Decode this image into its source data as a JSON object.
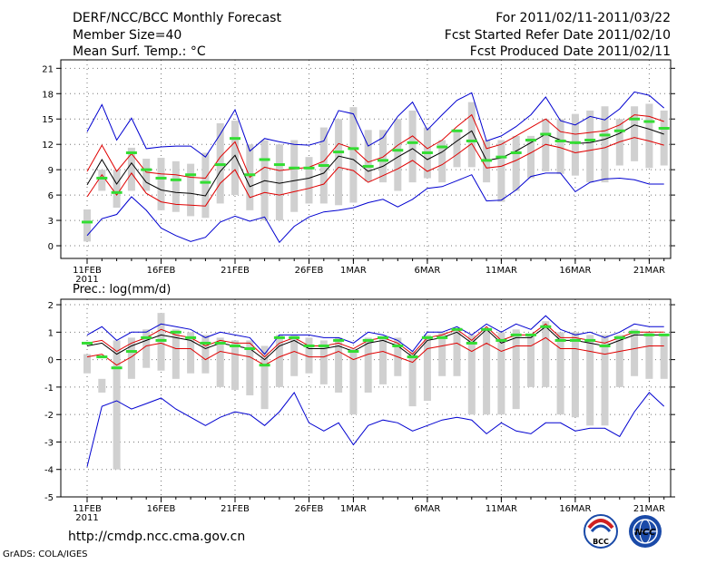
{
  "header": {
    "title": "DERF/NCC/BCC Monthly Forecast",
    "member_size": "Member Size=40",
    "variable": "Mean Surf. Temp.: °C",
    "period": "For 2011/02/11-2011/03/22",
    "started": "Fcst Started Refer Date 2011/02/10",
    "produced": "Fcst Produced Date 2011/02/11"
  },
  "footer": {
    "url": "http://cmdp.ncc.cma.gov.cn",
    "grads": "GrADS: COLA/IGES",
    "logo_bcc": "BCC",
    "logo_ncc": "NCC"
  },
  "colors": {
    "mean": "#000000",
    "spread": "#e00000",
    "extreme": "#0000d0",
    "box": "#d0d0d0",
    "dash": "#33dd33"
  },
  "chart_data": [
    {
      "type": "box-ensemble",
      "title": "Mean Surf. Temp.: °C",
      "ylim": [
        -1.5,
        22
      ],
      "yticks": [
        0,
        3,
        6,
        9,
        12,
        15,
        18,
        21
      ],
      "xticks": [
        {
          "day": 0,
          "label": "11FEB",
          "sub": "2011"
        },
        {
          "day": 5,
          "label": "16FEB"
        },
        {
          "day": 10,
          "label": "21FEB"
        },
        {
          "day": 15,
          "label": "26FEB"
        },
        {
          "day": 18,
          "label": "1MAR"
        },
        {
          "day": 23,
          "label": "6MAR"
        },
        {
          "day": 28,
          "label": "11MAR"
        },
        {
          "day": 33,
          "label": "16MAR"
        },
        {
          "day": 38,
          "label": "21MAR"
        }
      ],
      "series": [
        {
          "name": "max",
          "color": "extreme",
          "values": [
            13.5,
            16.7,
            12.5,
            15.1,
            11.5,
            11.7,
            11.8,
            11.8,
            10.5,
            13.2,
            16.1,
            11.2,
            12.7,
            12.3,
            12,
            11.9,
            12.4,
            16,
            15.6,
            11.8,
            12.8,
            15.3,
            17,
            13.7,
            15.5,
            17.2,
            18.1,
            12.4,
            13,
            14.1,
            15.5,
            17.6,
            14.8,
            14.3,
            15.3,
            14.9,
            16.2,
            18.2,
            17.8,
            16.3
          ]
        },
        {
          "name": "upper",
          "color": "spread",
          "values": [
            8.8,
            11.9,
            8.8,
            10.9,
            8.7,
            8.5,
            8.4,
            8.1,
            8,
            10.5,
            12.3,
            8.1,
            9.3,
            8.9,
            9.1,
            9.3,
            10,
            12.1,
            11.5,
            9.9,
            10.5,
            11.9,
            13,
            11.5,
            12.5,
            14.1,
            15.5,
            11.5,
            12,
            13,
            14,
            15,
            13.5,
            13.2,
            13.4,
            13.6,
            14.3,
            15.5,
            15.3,
            14.7
          ]
        },
        {
          "name": "mean",
          "color": "mean",
          "values": [
            7.2,
            10.2,
            7.3,
            9.8,
            7.5,
            6.6,
            6.3,
            6.2,
            5.9,
            8.8,
            10.7,
            7,
            7.7,
            7.4,
            7.7,
            8,
            8.6,
            10.6,
            10.2,
            8.8,
            9.4,
            10.5,
            11.5,
            10.2,
            11.1,
            12.4,
            13.6,
            10.1,
            10.4,
            11.2,
            12.2,
            13.2,
            12.5,
            12.1,
            12.2,
            12.6,
            13.3,
            14.3,
            13.8,
            13.2
          ]
        },
        {
          "name": "lower",
          "color": "spread",
          "values": [
            5.8,
            8.4,
            6,
            8.6,
            6.2,
            5.2,
            4.9,
            4.8,
            4.7,
            7.4,
            9,
            5.7,
            6.3,
            6,
            6.4,
            6.8,
            7.3,
            9.3,
            8.9,
            7.5,
            8.3,
            9.1,
            10.1,
            8.8,
            9.6,
            10.8,
            12.1,
            9.2,
            9.4,
            10.1,
            11,
            12,
            11.6,
            11,
            11.3,
            11.6,
            12.3,
            12.8,
            12.4,
            11.9
          ]
        },
        {
          "name": "min",
          "color": "extreme",
          "values": [
            1.2,
            3.2,
            3.7,
            5.8,
            4.2,
            2.1,
            1.2,
            0.5,
            1,
            2.8,
            3.5,
            2.9,
            3.4,
            0.4,
            2.3,
            3.4,
            4,
            4.2,
            4.5,
            5.1,
            5.5,
            4.6,
            5.5,
            6.8,
            7,
            7.7,
            8.4,
            5.3,
            5.4,
            6.6,
            8.2,
            8.6,
            8.6,
            6.4,
            7.5,
            7.9,
            8,
            7.8,
            7.3,
            7.3
          ]
        },
        {
          "name": "observed",
          "color": "dash",
          "values": [
            2.8,
            8,
            6.3,
            11,
            9,
            8,
            7.8,
            8.4,
            7.5,
            9.6,
            12.7,
            8.4,
            10.2,
            9.6,
            9.2,
            9.2,
            9.5,
            11.1,
            11.5,
            9.4,
            10.1,
            11.3,
            12.2,
            11,
            11.7,
            13.6,
            12.4,
            10.1,
            10.5,
            11,
            12.5,
            13.2,
            12.4,
            12.2,
            12.5,
            13.1,
            13.6,
            15,
            14.7,
            13.9
          ]
        },
        {
          "name": "box_top",
          "color": "box",
          "values": [
            4.3,
            9,
            9,
            11.6,
            10.3,
            10.4,
            10,
            9.7,
            11,
            14.5,
            14.8,
            12,
            12.5,
            12,
            12.5,
            10.5,
            14,
            15,
            16.4,
            13.7,
            13.7,
            15,
            16,
            14,
            12.5,
            13.5,
            17,
            12.5,
            12.5,
            13,
            13,
            15,
            15,
            15.6,
            16,
            16.5,
            15,
            16.5,
            16.8,
            16
          ]
        },
        {
          "name": "box_bottom",
          "color": "box",
          "values": [
            0.5,
            6.5,
            4.5,
            6.5,
            6.5,
            4.2,
            4,
            3.5,
            3.3,
            5,
            6,
            4.2,
            3,
            3,
            4,
            5,
            5,
            4.8,
            5.1,
            7.6,
            7.5,
            6.5,
            7.5,
            8,
            7.5,
            9.3,
            9.3,
            7.5,
            5.2,
            6.5,
            8,
            8.8,
            8.5,
            8.3,
            7.5,
            7.5,
            9.5,
            10,
            9.2,
            9.5
          ]
        }
      ]
    },
    {
      "type": "box-ensemble",
      "title": "Prec.: log(mm/d)",
      "ylim": [
        -5,
        2.2
      ],
      "yticks": [
        -5,
        -4,
        -3,
        -2,
        -1,
        0,
        1,
        2
      ],
      "xticks": [
        {
          "day": 0,
          "label": "11FEB",
          "sub": "2011"
        },
        {
          "day": 5,
          "label": "16FEB"
        },
        {
          "day": 10,
          "label": "21FEB"
        },
        {
          "day": 15,
          "label": "26FEB"
        },
        {
          "day": 18,
          "label": "1MAR"
        },
        {
          "day": 23,
          "label": "6MAR"
        },
        {
          "day": 28,
          "label": "11MAR"
        },
        {
          "day": 33,
          "label": "16MAR"
        },
        {
          "day": 38,
          "label": "21MAR"
        }
      ],
      "series": [
        {
          "name": "max",
          "color": "extreme",
          "values": [
            0.9,
            1.2,
            0.7,
            1,
            1,
            1.3,
            1.2,
            1.1,
            0.8,
            1,
            0.9,
            0.8,
            0.2,
            0.9,
            0.9,
            0.9,
            0.8,
            0.8,
            0.6,
            1,
            0.9,
            0.7,
            0.3,
            1,
            1,
            1.2,
            0.9,
            1.3,
            1,
            1.3,
            1.1,
            1.6,
            1.1,
            0.9,
            1,
            0.8,
            1,
            1.3,
            1.2,
            1.2
          ]
        },
        {
          "name": "upper",
          "color": "spread",
          "values": [
            0.6,
            0.7,
            0.3,
            0.6,
            0.8,
            1.1,
            0.9,
            0.8,
            0.5,
            0.7,
            0.6,
            0.6,
            0.1,
            0.6,
            0.8,
            0.5,
            0.5,
            0.6,
            0.4,
            0.7,
            0.8,
            0.6,
            0.2,
            0.8,
            0.9,
            1.1,
            0.7,
            1.2,
            0.7,
            0.9,
            0.9,
            1.3,
            0.8,
            0.8,
            0.7,
            0.6,
            0.8,
            1,
            1,
            1
          ]
        },
        {
          "name": "mean",
          "color": "mean",
          "values": [
            0.5,
            0.6,
            0.2,
            0.5,
            0.7,
            0.9,
            0.8,
            0.7,
            0.4,
            0.6,
            0.5,
            0.4,
            0,
            0.5,
            0.7,
            0.4,
            0.4,
            0.5,
            0.3,
            0.6,
            0.7,
            0.5,
            0.1,
            0.7,
            0.8,
            1,
            0.6,
            1.1,
            0.6,
            0.8,
            0.8,
            1.2,
            0.7,
            0.7,
            0.6,
            0.5,
            0.7,
            0.9,
            0.9,
            0.9
          ]
        },
        {
          "name": "lower",
          "color": "spread",
          "values": [
            0.1,
            0.2,
            -0.2,
            0.1,
            0.5,
            0.6,
            0.4,
            0.4,
            0,
            0.3,
            0.2,
            0.1,
            -0.2,
            0.1,
            0.3,
            0.1,
            0.1,
            0.3,
            0,
            0.2,
            0.3,
            0.1,
            -0.1,
            0.4,
            0.5,
            0.6,
            0.3,
            0.6,
            0.3,
            0.5,
            0.5,
            0.8,
            0.4,
            0.4,
            0.3,
            0.2,
            0.3,
            0.4,
            0.5,
            0.5
          ]
        },
        {
          "name": "min",
          "color": "extreme",
          "values": [
            -3.9,
            -1.7,
            -1.5,
            -1.8,
            -1.6,
            -1.4,
            -1.8,
            -2.1,
            -2.4,
            -2.1,
            -1.9,
            -2,
            -2.4,
            -1.9,
            -1.2,
            -2.3,
            -2.6,
            -2.3,
            -3.1,
            -2.4,
            -2.2,
            -2.3,
            -2.6,
            -2.4,
            -2.2,
            -2.1,
            -2.2,
            -2.7,
            -2.3,
            -2.6,
            -2.7,
            -2.3,
            -2.3,
            -2.6,
            -2.5,
            -2.5,
            -2.8,
            -1.9,
            -1.2,
            -1.7
          ]
        },
        {
          "name": "observed",
          "color": "dash",
          "values": [
            0.6,
            0.1,
            -0.3,
            0.3,
            0.8,
            0.7,
            1,
            0.8,
            0.6,
            0.6,
            0.5,
            0.4,
            -0.2,
            0.8,
            0.8,
            0.5,
            0.5,
            0.7,
            0.3,
            0.7,
            0.8,
            0.5,
            0.1,
            0.8,
            0.8,
            1.1,
            0.6,
            1.1,
            0.7,
            0.9,
            0.9,
            1.2,
            0.7,
            0.7,
            0.7,
            0.5,
            0.8,
            1,
            0.9,
            0.9
          ]
        },
        {
          "name": "box_top",
          "color": "box",
          "values": [
            0.2,
            -0.7,
            0.7,
            0.8,
            1.1,
            1.7,
            1.1,
            1,
            0.9,
            0.8,
            0.7,
            0.7,
            0.5,
            0.9,
            0.9,
            0.8,
            0.7,
            0.8,
            0.4,
            0.8,
            0.8,
            0.8,
            0.3,
            0.9,
            1,
            1.1,
            0.9,
            1.1,
            1,
            1.1,
            0.9,
            1.4,
            1,
            1,
            0.9,
            0.9,
            0.9,
            1.1,
            1,
            0.9
          ]
        },
        {
          "name": "box_bottom",
          "color": "box",
          "values": [
            -0.5,
            -1.2,
            -4,
            -0.7,
            -0.3,
            -0.4,
            -0.7,
            -0.5,
            -0.5,
            -1,
            -1.1,
            -1.3,
            -1.8,
            -1,
            -0.6,
            -0.5,
            -0.9,
            -1.2,
            -2,
            -1.2,
            -0.9,
            -0.6,
            -1.7,
            -1.5,
            -0.6,
            -0.6,
            -2,
            -2,
            -2,
            -1.8,
            -1,
            -1,
            -2,
            -2.1,
            -2.4,
            -2.4,
            -1,
            -0.6,
            -0.7,
            -0.7
          ]
        }
      ]
    }
  ]
}
